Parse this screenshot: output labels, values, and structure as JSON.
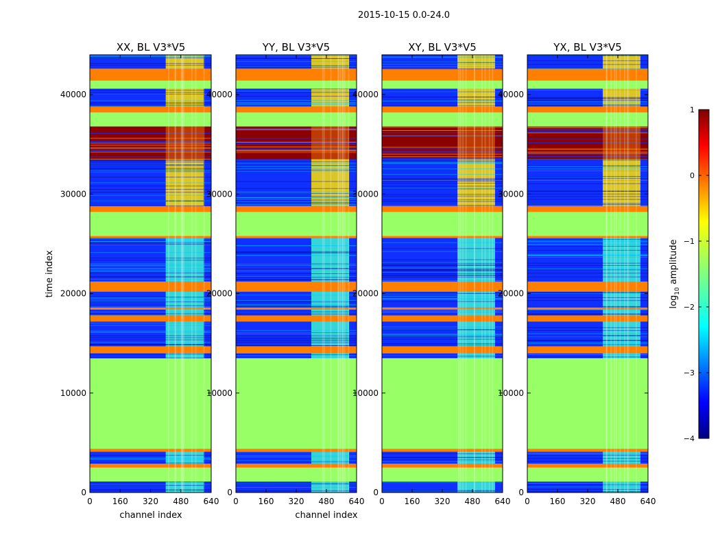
{
  "figure": {
    "suptitle": "2015-10-15 0.0-24.0"
  },
  "chart_data": [
    {
      "type": "heatmap",
      "title": "XX, BL V3*V5",
      "xlabel": "channel index",
      "ylabel": "time index",
      "xlim": [
        0,
        640
      ],
      "ylim": [
        0,
        44000
      ],
      "x_ticks": [
        0,
        160,
        320,
        480,
        640
      ],
      "y_ticks": [
        0,
        10000,
        20000,
        30000,
        40000
      ]
    },
    {
      "type": "heatmap",
      "title": "YY, BL V3*V5",
      "xlabel": "channel index",
      "ylabel": "",
      "xlim": [
        0,
        640
      ],
      "ylim": [
        0,
        44000
      ],
      "x_ticks": [
        0,
        160,
        320,
        480,
        640
      ],
      "y_ticks": [
        0,
        10000,
        20000,
        30000,
        40000
      ]
    },
    {
      "type": "heatmap",
      "title": "XY, BL V3*V5",
      "xlabel": "",
      "ylabel": "",
      "xlim": [
        0,
        640
      ],
      "ylim": [
        0,
        44000
      ],
      "x_ticks": [
        0,
        160,
        320,
        480,
        640
      ],
      "y_ticks": [
        0,
        10000,
        20000,
        30000,
        40000
      ]
    },
    {
      "type": "heatmap",
      "title": "YX, BL V3*V5",
      "xlabel": "",
      "ylabel": "",
      "xlim": [
        0,
        640
      ],
      "ylim": [
        0,
        44000
      ],
      "x_ticks": [
        0,
        160,
        320,
        480,
        640
      ],
      "y_ticks": [
        0,
        10000,
        20000,
        30000,
        40000
      ]
    }
  ],
  "colorbar": {
    "label": "log10 amplitude",
    "range": [
      -4,
      1
    ],
    "ticks": [
      1,
      0,
      -1,
      -2,
      -3,
      -4
    ],
    "colormap": "jet"
  },
  "time_blocks": [
    {
      "t0": 0,
      "t1": 1100,
      "kind": "data"
    },
    {
      "t0": 1100,
      "t1": 1500,
      "kind": "flag"
    },
    {
      "t0": 1500,
      "t1": 2500,
      "kind": "flag"
    },
    {
      "t0": 2500,
      "t1": 2900,
      "kind": "rfi"
    },
    {
      "t0": 2900,
      "t1": 3200,
      "kind": "data"
    },
    {
      "t0": 3200,
      "t1": 4100,
      "kind": "data"
    },
    {
      "t0": 4100,
      "t1": 4400,
      "kind": "rfi"
    },
    {
      "t0": 4400,
      "t1": 13500,
      "kind": "flag"
    },
    {
      "t0": 13500,
      "t1": 14000,
      "kind": "data"
    },
    {
      "t0": 14000,
      "t1": 14700,
      "kind": "rfi"
    },
    {
      "t0": 14700,
      "t1": 17200,
      "kind": "data"
    },
    {
      "t0": 17200,
      "t1": 17800,
      "kind": "rfi"
    },
    {
      "t0": 17800,
      "t1": 18400,
      "kind": "data"
    },
    {
      "t0": 18400,
      "t1": 18600,
      "kind": "rfi"
    },
    {
      "t0": 18600,
      "t1": 20200,
      "kind": "data"
    },
    {
      "t0": 20200,
      "t1": 21200,
      "kind": "rfi"
    },
    {
      "t0": 21200,
      "t1": 25600,
      "kind": "data"
    },
    {
      "t0": 25600,
      "t1": 25800,
      "kind": "rfi"
    },
    {
      "t0": 25800,
      "t1": 28200,
      "kind": "flag"
    },
    {
      "t0": 28200,
      "t1": 28800,
      "kind": "rfi"
    },
    {
      "t0": 28800,
      "t1": 33500,
      "kind": "data"
    },
    {
      "t0": 33500,
      "t1": 36800,
      "kind": "hot"
    },
    {
      "t0": 36800,
      "t1": 38200,
      "kind": "flag"
    },
    {
      "t0": 38200,
      "t1": 38800,
      "kind": "rfi"
    },
    {
      "t0": 38800,
      "t1": 40600,
      "kind": "data"
    },
    {
      "t0": 40600,
      "t1": 41400,
      "kind": "flag"
    },
    {
      "t0": 41400,
      "t1": 42600,
      "kind": "rfi"
    },
    {
      "t0": 42600,
      "t1": 44000,
      "kind": "data"
    }
  ],
  "channel_band": {
    "c0": 400,
    "c1": 600
  },
  "colors": {
    "flag": "#99ff66",
    "rfi": "#ff7f00",
    "data": "#1030ff",
    "band": "#40ffd0",
    "hot": "#8b0000",
    "yellow": "#ffe000"
  }
}
